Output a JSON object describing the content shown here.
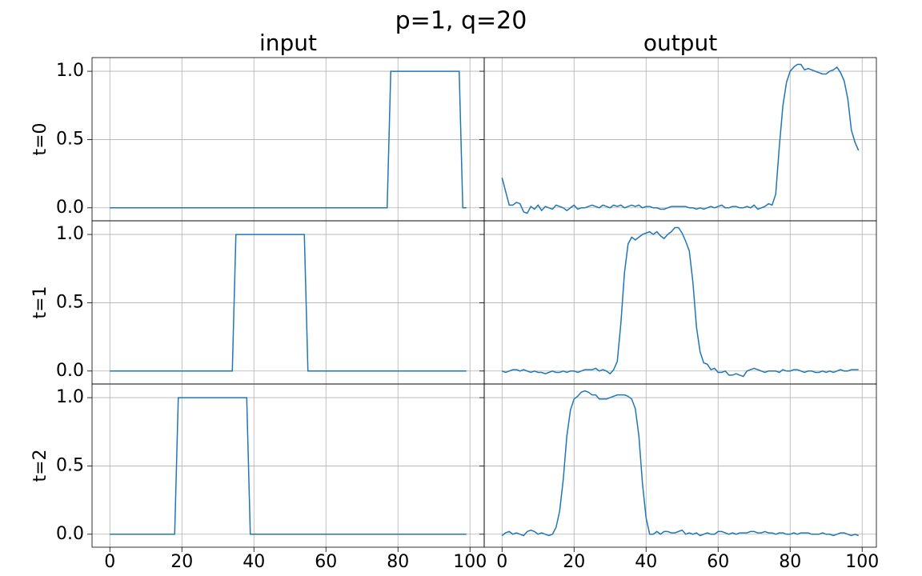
{
  "title": "p=1, q=20",
  "chart_data": [
    {
      "type": "line",
      "title": "input",
      "ylabel": "t=0",
      "color": "#1f77b4",
      "grid": true,
      "xtick_labels": false,
      "ytick_labels": true,
      "xlim": [
        -4.95,
        103.95
      ],
      "ylim": [
        -0.095,
        1.1
      ],
      "xticks": [
        0,
        20,
        40,
        60,
        80,
        100
      ],
      "yticks": [
        {
          "value": 0,
          "label": "0.0"
        },
        {
          "value": 0.5,
          "label": "0.5"
        },
        {
          "value": 1,
          "label": "1.0"
        }
      ],
      "x": [
        0,
        1,
        2,
        3,
        4,
        5,
        6,
        7,
        8,
        9,
        10,
        11,
        12,
        13,
        14,
        15,
        16,
        17,
        18,
        19,
        20,
        21,
        22,
        23,
        24,
        25,
        26,
        27,
        28,
        29,
        30,
        31,
        32,
        33,
        34,
        35,
        36,
        37,
        38,
        39,
        40,
        41,
        42,
        43,
        44,
        45,
        46,
        47,
        48,
        49,
        50,
        51,
        52,
        53,
        54,
        55,
        56,
        57,
        58,
        59,
        60,
        61,
        62,
        63,
        64,
        65,
        66,
        67,
        68,
        69,
        70,
        71,
        72,
        73,
        74,
        75,
        76,
        77,
        78,
        79,
        80,
        81,
        82,
        83,
        84,
        85,
        86,
        87,
        88,
        89,
        90,
        91,
        92,
        93,
        94,
        95,
        96,
        97,
        98,
        99
      ],
      "values": [
        0,
        0,
        0,
        0,
        0,
        0,
        0,
        0,
        0,
        0,
        0,
        0,
        0,
        0,
        0,
        0,
        0,
        0,
        0,
        0,
        0,
        0,
        0,
        0,
        0,
        0,
        0,
        0,
        0,
        0,
        0,
        0,
        0,
        0,
        0,
        0,
        0,
        0,
        0,
        0,
        0,
        0,
        0,
        0,
        0,
        0,
        0,
        0,
        0,
        0,
        0,
        0,
        0,
        0,
        0,
        0,
        0,
        0,
        0,
        0,
        0,
        0,
        0,
        0,
        0,
        0,
        0,
        0,
        0,
        0,
        0,
        0,
        0,
        0,
        0,
        0,
        0,
        0,
        1,
        1,
        1,
        1,
        1,
        1,
        1,
        1,
        1,
        1,
        1,
        1,
        1,
        1,
        1,
        1,
        1,
        1,
        1,
        1,
        0,
        0
      ]
    },
    {
      "type": "line",
      "title": "output",
      "color": "#1f77b4",
      "grid": true,
      "xtick_labels": false,
      "ytick_labels": false,
      "xlim": [
        -4.95,
        103.95
      ],
      "ylim": [
        -0.095,
        1.1
      ],
      "xticks": [
        0,
        20,
        40,
        60,
        80,
        100
      ],
      "yticks": [
        0,
        0.5,
        1
      ],
      "x": [
        0,
        1,
        2,
        3,
        4,
        5,
        6,
        7,
        8,
        9,
        10,
        11,
        12,
        13,
        14,
        15,
        16,
        17,
        18,
        19,
        20,
        21,
        22,
        23,
        24,
        25,
        26,
        27,
        28,
        29,
        30,
        31,
        32,
        33,
        34,
        35,
        36,
        37,
        38,
        39,
        40,
        41,
        42,
        43,
        44,
        45,
        46,
        47,
        48,
        49,
        50,
        51,
        52,
        53,
        54,
        55,
        56,
        57,
        58,
        59,
        60,
        61,
        62,
        63,
        64,
        65,
        66,
        67,
        68,
        69,
        70,
        71,
        72,
        73,
        74,
        75,
        76,
        77,
        78,
        79,
        80,
        81,
        82,
        83,
        84,
        85,
        86,
        87,
        88,
        89,
        90,
        91,
        92,
        93,
        94,
        95,
        96,
        97,
        98,
        99
      ],
      "values": [
        0.22,
        0.12,
        0.02,
        0.02,
        0.04,
        0.03,
        -0.03,
        -0.04,
        0.01,
        -0.01,
        0.02,
        -0.02,
        0.01,
        0.0,
        -0.01,
        0.02,
        0.01,
        0.0,
        -0.02,
        0.0,
        0.02,
        -0.01,
        0.0,
        0.0,
        0.01,
        0.02,
        0.01,
        0.0,
        0.02,
        0.01,
        0.0,
        0.02,
        0.01,
        0.02,
        0.0,
        0.01,
        0.02,
        0.01,
        0.02,
        0.0,
        0.01,
        0.01,
        0.0,
        0.0,
        -0.01,
        -0.01,
        0.0,
        0.01,
        0.01,
        0.01,
        0.01,
        0.01,
        0.0,
        0.0,
        -0.01,
        0.0,
        -0.01,
        0.0,
        0.01,
        0.0,
        0.01,
        0.02,
        0.0,
        0.0,
        0.01,
        0.01,
        0.0,
        0.0,
        0.01,
        0.0,
        0.02,
        -0.01,
        0.0,
        0.01,
        0.03,
        0.02,
        0.1,
        0.45,
        0.75,
        0.92,
        1.0,
        1.03,
        1.05,
        1.05,
        1.01,
        1.02,
        1.01,
        1.0,
        0.99,
        0.98,
        0.98,
        1.0,
        1.01,
        1.03,
        0.99,
        0.93,
        0.8,
        0.57,
        0.48,
        0.42
      ]
    },
    {
      "type": "line",
      "ylabel": "t=1",
      "color": "#1f77b4",
      "grid": true,
      "xtick_labels": false,
      "ytick_labels": true,
      "xlim": [
        -4.95,
        103.95
      ],
      "ylim": [
        -0.095,
        1.1
      ],
      "xticks": [
        0,
        20,
        40,
        60,
        80,
        100
      ],
      "yticks": [
        {
          "value": 0,
          "label": "0.0"
        },
        {
          "value": 0.5,
          "label": "0.5"
        },
        {
          "value": 1,
          "label": "1.0"
        }
      ],
      "x": [
        0,
        1,
        2,
        3,
        4,
        5,
        6,
        7,
        8,
        9,
        10,
        11,
        12,
        13,
        14,
        15,
        16,
        17,
        18,
        19,
        20,
        21,
        22,
        23,
        24,
        25,
        26,
        27,
        28,
        29,
        30,
        31,
        32,
        33,
        34,
        35,
        36,
        37,
        38,
        39,
        40,
        41,
        42,
        43,
        44,
        45,
        46,
        47,
        48,
        49,
        50,
        51,
        52,
        53,
        54,
        55,
        56,
        57,
        58,
        59,
        60,
        61,
        62,
        63,
        64,
        65,
        66,
        67,
        68,
        69,
        70,
        71,
        72,
        73,
        74,
        75,
        76,
        77,
        78,
        79,
        80,
        81,
        82,
        83,
        84,
        85,
        86,
        87,
        88,
        89,
        90,
        91,
        92,
        93,
        94,
        95,
        96,
        97,
        98,
        99
      ],
      "values": [
        0,
        0,
        0,
        0,
        0,
        0,
        0,
        0,
        0,
        0,
        0,
        0,
        0,
        0,
        0,
        0,
        0,
        0,
        0,
        0,
        0,
        0,
        0,
        0,
        0,
        0,
        0,
        0,
        0,
        0,
        0,
        0,
        0,
        0,
        0,
        1,
        1,
        1,
        1,
        1,
        1,
        1,
        1,
        1,
        1,
        1,
        1,
        1,
        1,
        1,
        1,
        1,
        1,
        1,
        1,
        0,
        0,
        0,
        0,
        0,
        0,
        0,
        0,
        0,
        0,
        0,
        0,
        0,
        0,
        0,
        0,
        0,
        0,
        0,
        0,
        0,
        0,
        0,
        0,
        0,
        0,
        0,
        0,
        0,
        0,
        0,
        0,
        0,
        0,
        0,
        0,
        0,
        0,
        0,
        0,
        0,
        0,
        0,
        0,
        0
      ]
    },
    {
      "type": "line",
      "color": "#1f77b4",
      "grid": true,
      "xtick_labels": false,
      "ytick_labels": false,
      "xlim": [
        -4.95,
        103.95
      ],
      "ylim": [
        -0.095,
        1.1
      ],
      "xticks": [
        0,
        20,
        40,
        60,
        80,
        100
      ],
      "yticks": [
        0,
        0.5,
        1
      ],
      "x": [
        0,
        1,
        2,
        3,
        4,
        5,
        6,
        7,
        8,
        9,
        10,
        11,
        12,
        13,
        14,
        15,
        16,
        17,
        18,
        19,
        20,
        21,
        22,
        23,
        24,
        25,
        26,
        27,
        28,
        29,
        30,
        31,
        32,
        33,
        34,
        35,
        36,
        37,
        38,
        39,
        40,
        41,
        42,
        43,
        44,
        45,
        46,
        47,
        48,
        49,
        50,
        51,
        52,
        53,
        54,
        55,
        56,
        57,
        58,
        59,
        60,
        61,
        62,
        63,
        64,
        65,
        66,
        67,
        68,
        69,
        70,
        71,
        72,
        73,
        74,
        75,
        76,
        77,
        78,
        79,
        80,
        81,
        82,
        83,
        84,
        85,
        86,
        87,
        88,
        89,
        90,
        91,
        92,
        93,
        94,
        95,
        96,
        97,
        98,
        99
      ],
      "values": [
        0.0,
        -0.01,
        0.0,
        0.01,
        0.01,
        0.0,
        0.01,
        0.0,
        -0.01,
        0.0,
        -0.01,
        -0.01,
        -0.02,
        -0.01,
        0.0,
        -0.01,
        -0.01,
        0.0,
        -0.01,
        0.0,
        0.0,
        -0.01,
        0.0,
        0.01,
        0.01,
        0.01,
        0.02,
        0.0,
        0.01,
        0.0,
        -0.02,
        0.01,
        0.07,
        0.35,
        0.72,
        0.93,
        0.98,
        0.96,
        0.98,
        1.0,
        1.01,
        1.02,
        1.0,
        1.02,
        0.99,
        0.97,
        1.0,
        1.02,
        1.05,
        1.05,
        1.01,
        0.95,
        0.88,
        0.65,
        0.32,
        0.14,
        0.06,
        0.05,
        0.01,
        0.02,
        -0.01,
        -0.01,
        0.0,
        -0.03,
        -0.03,
        -0.02,
        -0.03,
        -0.04,
        0.0,
        0.01,
        0.02,
        0.01,
        0.0,
        -0.01,
        0.0,
        0.0,
        0.0,
        -0.01,
        0.01,
        0.0,
        0.0,
        0.01,
        0.01,
        0.0,
        -0.01,
        0.0,
        0.0,
        -0.01,
        -0.01,
        0.0,
        -0.01,
        0.0,
        -0.01,
        0.0,
        0.01,
        0.0,
        0.0,
        0.01,
        0.01,
        0.01
      ]
    },
    {
      "type": "line",
      "ylabel": "t=2",
      "color": "#1f77b4",
      "grid": true,
      "xtick_labels": true,
      "ytick_labels": true,
      "xlim": [
        -4.95,
        103.95
      ],
      "ylim": [
        -0.095,
        1.1
      ],
      "xticks": [
        0,
        20,
        40,
        60,
        80,
        100
      ],
      "yticks": [
        {
          "value": 0,
          "label": "0.0"
        },
        {
          "value": 0.5,
          "label": "0.5"
        },
        {
          "value": 1,
          "label": "1.0"
        }
      ],
      "x": [
        0,
        1,
        2,
        3,
        4,
        5,
        6,
        7,
        8,
        9,
        10,
        11,
        12,
        13,
        14,
        15,
        16,
        17,
        18,
        19,
        20,
        21,
        22,
        23,
        24,
        25,
        26,
        27,
        28,
        29,
        30,
        31,
        32,
        33,
        34,
        35,
        36,
        37,
        38,
        39,
        40,
        41,
        42,
        43,
        44,
        45,
        46,
        47,
        48,
        49,
        50,
        51,
        52,
        53,
        54,
        55,
        56,
        57,
        58,
        59,
        60,
        61,
        62,
        63,
        64,
        65,
        66,
        67,
        68,
        69,
        70,
        71,
        72,
        73,
        74,
        75,
        76,
        77,
        78,
        79,
        80,
        81,
        82,
        83,
        84,
        85,
        86,
        87,
        88,
        89,
        90,
        91,
        92,
        93,
        94,
        95,
        96,
        97,
        98,
        99
      ],
      "values": [
        0,
        0,
        0,
        0,
        0,
        0,
        0,
        0,
        0,
        0,
        0,
        0,
        0,
        0,
        0,
        0,
        0,
        0,
        0,
        1,
        1,
        1,
        1,
        1,
        1,
        1,
        1,
        1,
        1,
        1,
        1,
        1,
        1,
        1,
        1,
        1,
        1,
        1,
        1,
        0,
        0,
        0,
        0,
        0,
        0,
        0,
        0,
        0,
        0,
        0,
        0,
        0,
        0,
        0,
        0,
        0,
        0,
        0,
        0,
        0,
        0,
        0,
        0,
        0,
        0,
        0,
        0,
        0,
        0,
        0,
        0,
        0,
        0,
        0,
        0,
        0,
        0,
        0,
        0,
        0,
        0,
        0,
        0,
        0,
        0,
        0,
        0,
        0,
        0,
        0,
        0,
        0,
        0,
        0,
        0,
        0,
        0,
        0,
        0,
        0
      ]
    },
    {
      "type": "line",
      "color": "#1f77b4",
      "grid": true,
      "xtick_labels": true,
      "ytick_labels": false,
      "xlim": [
        -4.95,
        103.95
      ],
      "ylim": [
        -0.095,
        1.1
      ],
      "xticks": [
        0,
        20,
        40,
        60,
        80,
        100
      ],
      "yticks": [
        0,
        0.5,
        1
      ],
      "x": [
        0,
        1,
        2,
        3,
        4,
        5,
        6,
        7,
        8,
        9,
        10,
        11,
        12,
        13,
        14,
        15,
        16,
        17,
        18,
        19,
        20,
        21,
        22,
        23,
        24,
        25,
        26,
        27,
        28,
        29,
        30,
        31,
        32,
        33,
        34,
        35,
        36,
        37,
        38,
        39,
        40,
        41,
        42,
        43,
        44,
        45,
        46,
        47,
        48,
        49,
        50,
        51,
        52,
        53,
        54,
        55,
        56,
        57,
        58,
        59,
        60,
        61,
        62,
        63,
        64,
        65,
        66,
        67,
        68,
        69,
        70,
        71,
        72,
        73,
        74,
        75,
        76,
        77,
        78,
        79,
        80,
        81,
        82,
        83,
        84,
        85,
        86,
        87,
        88,
        89,
        90,
        91,
        92,
        93,
        94,
        95,
        96,
        97,
        98,
        99
      ],
      "values": [
        -0.01,
        0.01,
        0.02,
        0.0,
        0.01,
        0.0,
        -0.01,
        0.02,
        0.03,
        0.02,
        0.0,
        0.01,
        0.0,
        -0.01,
        0.0,
        0.05,
        0.17,
        0.4,
        0.72,
        0.91,
        0.99,
        1.01,
        1.04,
        1.05,
        1.04,
        1.02,
        1.02,
        0.99,
        0.99,
        0.99,
        1.0,
        1.01,
        1.02,
        1.02,
        1.02,
        1.01,
        0.99,
        0.92,
        0.72,
        0.37,
        0.12,
        0.0,
        0.0,
        0.02,
        0.0,
        0.02,
        0.02,
        0.01,
        0.01,
        0.02,
        0.03,
        0.0,
        0.01,
        0.0,
        0.01,
        -0.01,
        0.0,
        0.01,
        0.0,
        0.0,
        0.02,
        0.02,
        0.01,
        0.0,
        0.01,
        0.0,
        0.01,
        0.01,
        0.01,
        0.02,
        0.02,
        0.01,
        0.01,
        0.02,
        0.01,
        0.01,
        0.0,
        0.01,
        0.01,
        0.0,
        0.0,
        0.01,
        0.0,
        0.01,
        0.01,
        0.01,
        0.0,
        0.0,
        0.0,
        0.01,
        0.0,
        0.0,
        -0.01,
        0.0,
        0.01,
        0.01,
        0.0,
        -0.01,
        0.0,
        -0.01
      ]
    }
  ]
}
